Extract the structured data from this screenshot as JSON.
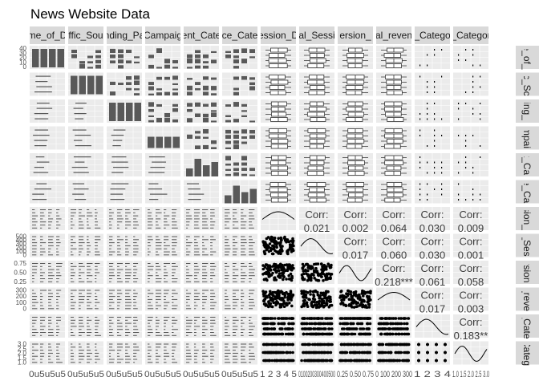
{
  "chart_data": {
    "type": "pairs",
    "title": "News Website Data",
    "variables": [
      "Time_of_Day",
      "Traffic_Source",
      "Landing_Page",
      "Campaign",
      "Content_Category",
      "Device_Category",
      "Session_Duration",
      "Total_Sessions",
      "Conversion_Rate",
      "Total_revenue",
      "Cart_Category",
      "Price_Category"
    ],
    "column_labels": [
      "me_of_D",
      "ffic_Sou",
      "nding_Pa",
      "Campaig",
      "ent_Cate",
      "ce_Cate",
      "ession_D",
      "al_Sessi",
      "ersion_",
      "al_reven",
      "_Catego",
      "_Categor"
    ],
    "row_labels": [
      "e_of_",
      "ic_Sc",
      "ing_",
      "mpai",
      "t_Ca",
      "e_Ca",
      "sion_",
      "_Ses",
      "rsion",
      "_reve",
      "_Cate",
      "Categ"
    ],
    "categorical_count": 6,
    "tick_labels_x": [
      "0u5u5u5",
      "0u5u5u5",
      "0u5u5u5",
      "0u5u5u5",
      "0u5u5u5",
      "0u5u5u5",
      "1 2 3 4 5",
      "0100200300400500",
      "0.25 0.50 0.75",
      "0 100 200 300",
      "1 2 3 4",
      "1.0 1.5 2.0 2.5 3.0"
    ],
    "tick_labels_y": {
      "Time_of_Day": [
        "40",
        "30",
        "20",
        "10",
        "0"
      ],
      "Session_Duration": [
        "500",
        "400",
        "300",
        "200",
        "100",
        "0"
      ],
      "Conversion_Rate": [
        "0.75",
        "0.50",
        "0.25"
      ],
      "Total_revenue": [
        "300",
        "200",
        "100",
        "0"
      ],
      "Price_Category": [
        "3.0",
        "2.5",
        "2.0",
        "1.5",
        "1.0"
      ]
    },
    "correlations": [
      {
        "row": 6,
        "col": 7,
        "label": "Corr:",
        "value": "0.021"
      },
      {
        "row": 6,
        "col": 8,
        "label": "Corr:",
        "value": "0.002"
      },
      {
        "row": 6,
        "col": 9,
        "label": "Corr:",
        "value": "0.064"
      },
      {
        "row": 6,
        "col": 10,
        "label": "Corr:",
        "value": "0.030"
      },
      {
        "row": 6,
        "col": 11,
        "label": "Corr:",
        "value": "0.009"
      },
      {
        "row": 7,
        "col": 8,
        "label": "Corr:",
        "value": "0.017"
      },
      {
        "row": 7,
        "col": 9,
        "label": "Corr:",
        "value": "0.060"
      },
      {
        "row": 7,
        "col": 10,
        "label": "Corr:",
        "value": "0.030"
      },
      {
        "row": 7,
        "col": 11,
        "label": "Corr:",
        "value": "0.001"
      },
      {
        "row": 8,
        "col": 9,
        "label": "Corr:",
        "value": "0.218***"
      },
      {
        "row": 8,
        "col": 10,
        "label": "Corr:",
        "value": "0.061"
      },
      {
        "row": 8,
        "col": 11,
        "label": "Corr:",
        "value": "0.058"
      },
      {
        "row": 9,
        "col": 10,
        "label": "Corr:",
        "value": "0.017"
      },
      {
        "row": 9,
        "col": 11,
        "label": "Corr:",
        "value": "0.003"
      },
      {
        "row": 10,
        "col": 11,
        "label": "Corr:",
        "value": "0.183**"
      }
    ],
    "colors": {
      "panel_background": "#ebebeb",
      "strip_background": "#d9d9d9",
      "bars": "#595959",
      "points": "#000000",
      "grid": "#ffffff"
    }
  }
}
